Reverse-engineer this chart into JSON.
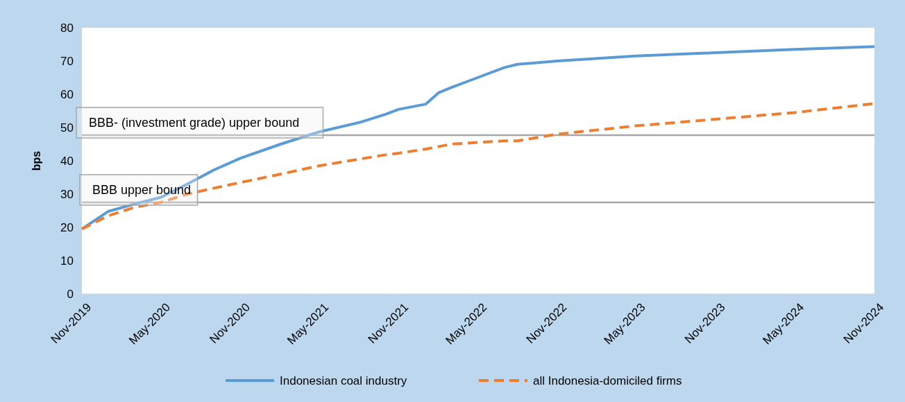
{
  "chart_data": {
    "type": "line",
    "ylabel": "bps",
    "xlim": [
      "2019-11",
      "2024-11"
    ],
    "ylim": [
      0,
      80
    ],
    "yticks": [
      0,
      10,
      20,
      30,
      40,
      50,
      60,
      70,
      80
    ],
    "xticks": [
      {
        "value": "2019-11",
        "label": "Nov-2019"
      },
      {
        "value": "2020-05",
        "label": "May-2020"
      },
      {
        "value": "2020-11",
        "label": "Nov-2020"
      },
      {
        "value": "2021-05",
        "label": "May-2021"
      },
      {
        "value": "2021-11",
        "label": "Nov-2021"
      },
      {
        "value": "2022-05",
        "label": "May-2022"
      },
      {
        "value": "2022-11",
        "label": "Nov-2022"
      },
      {
        "value": "2023-05",
        "label": "May-2023"
      },
      {
        "value": "2023-11",
        "label": "Nov-2023"
      },
      {
        "value": "2024-05",
        "label": "May-2024"
      },
      {
        "value": "2024-11",
        "label": "Nov-2024"
      }
    ],
    "x": [
      "2019-11",
      "2020-01",
      "2020-03",
      "2020-05",
      "2020-07",
      "2020-09",
      "2020-11",
      "2021-02",
      "2021-05",
      "2021-08",
      "2021-10",
      "2021-11",
      "2022-01",
      "2022-02",
      "2022-03",
      "2022-05",
      "2022-07",
      "2022-08",
      "2022-11",
      "2023-05",
      "2023-11",
      "2024-05",
      "2024-11"
    ],
    "series": [
      {
        "name": "Indonesian coal industry",
        "color": "#5b9bd5",
        "line_style": "solid",
        "values": [
          19.5,
          24.8,
          27,
          29,
          33,
          37.3,
          40.8,
          45,
          48.7,
          51.5,
          54,
          55.5,
          57,
          60.5,
          62,
          65,
          68,
          69,
          70,
          71.5,
          72.5,
          73.5,
          74.3
        ]
      },
      {
        "name": "all Indonesia-domiciled firms",
        "color": "#ed7d31",
        "line_style": "dashed",
        "values": [
          19.5,
          23.5,
          26,
          27.5,
          30,
          31.8,
          33.5,
          36,
          38.5,
          40.5,
          41.8,
          42.3,
          43.5,
          44.3,
          45,
          45.5,
          46,
          46,
          48,
          50.5,
          52.5,
          54.5,
          57.2
        ]
      }
    ],
    "ref_lines": [
      {
        "axis": "y",
        "value": 47.7,
        "label": "BBB- (investment grade) upper bound",
        "color": "#a6a6a6"
      },
      {
        "axis": "y",
        "value": 27.5,
        "label": "BBB upper bound",
        "color": "#a6a6a6"
      }
    ],
    "grid": false,
    "legend": "bottom",
    "marker": "none"
  }
}
